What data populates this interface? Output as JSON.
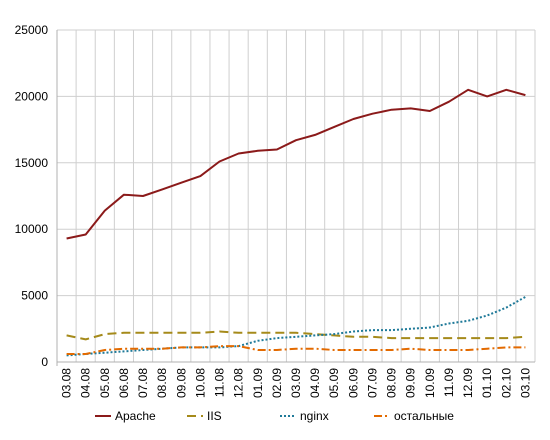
{
  "chart_data": {
    "type": "line",
    "categories": [
      "03.08",
      "04.08",
      "05.08",
      "06.08",
      "07.08",
      "08.08",
      "09.08",
      "10.08",
      "11.08",
      "12.08",
      "01.09",
      "02.09",
      "03.09",
      "04.09",
      "05.09",
      "06.09",
      "07.09",
      "08.09",
      "09.09",
      "10.09",
      "11.09",
      "12.09",
      "01.10",
      "02.10",
      "03.10"
    ],
    "ylim": [
      0,
      25000
    ],
    "yticks": [
      0,
      5000,
      10000,
      15000,
      20000,
      25000
    ],
    "ytick_labels": [
      "0",
      "5000",
      "10000",
      "15000",
      "20000",
      "25000"
    ],
    "grid": true,
    "legend_position": "bottom",
    "series": [
      {
        "name": "Apache",
        "color": "#8b1a1a",
        "dash": "solid",
        "values": [
          9300,
          9600,
          11400,
          12600,
          12500,
          13000,
          13500,
          14000,
          15100,
          15700,
          15900,
          16000,
          16700,
          17100,
          17700,
          18300,
          18700,
          19000,
          19100,
          18900,
          19600,
          20500,
          20000,
          20500,
          20100
        ]
      },
      {
        "name": "IIS",
        "color": "#a58a1a",
        "dash": "dashed",
        "values": [
          2000,
          1700,
          2100,
          2200,
          2200,
          2200,
          2200,
          2200,
          2300,
          2200,
          2200,
          2200,
          2200,
          2100,
          2000,
          1900,
          1900,
          1800,
          1800,
          1800,
          1800,
          1800,
          1800,
          1800,
          1900
        ]
      },
      {
        "name": "nginx",
        "color": "#1f7a99",
        "dash": "dotted",
        "values": [
          500,
          600,
          700,
          800,
          900,
          1000,
          1100,
          1100,
          1100,
          1200,
          1600,
          1800,
          1900,
          2000,
          2100,
          2300,
          2400,
          2400,
          2500,
          2600,
          2900,
          3100,
          3500,
          4100,
          4900
        ]
      },
      {
        "name": "остальные",
        "color": "#e36a00",
        "dash": "dashdot",
        "values": [
          600,
          600,
          900,
          1000,
          1000,
          1000,
          1100,
          1100,
          1200,
          1200,
          900,
          900,
          1000,
          1000,
          900,
          900,
          900,
          900,
          1000,
          900,
          900,
          900,
          1000,
          1100,
          1100
        ]
      }
    ]
  }
}
